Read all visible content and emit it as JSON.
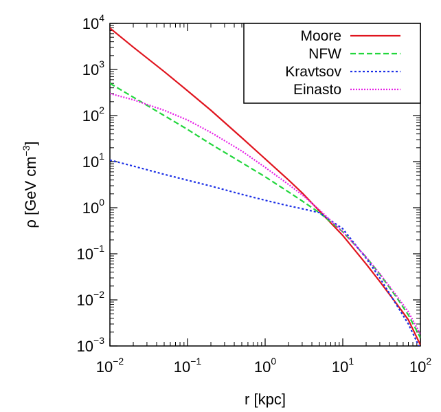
{
  "chart_data": {
    "type": "line",
    "title": "",
    "xlabel": "r [kpc]",
    "ylabel": {
      "prefix": "ρ [GeV cm",
      "exp": "−3",
      "suffix": "]"
    },
    "xscale": "log",
    "yscale": "log",
    "xlim": [
      0.01,
      100
    ],
    "ylim": [
      0.001,
      10000
    ],
    "grid": false,
    "legend_position": "top-right",
    "x_ticks": [
      {
        "base": "10",
        "exp": "−2"
      },
      {
        "base": "10",
        "exp": "−1"
      },
      {
        "base": "10",
        "exp": "0"
      },
      {
        "base": "10",
        "exp": "1"
      },
      {
        "base": "10",
        "exp": "2"
      }
    ],
    "y_ticks": [
      {
        "base": "10",
        "exp": "−3"
      },
      {
        "base": "10",
        "exp": "−2"
      },
      {
        "base": "10",
        "exp": "−1"
      },
      {
        "base": "10",
        "exp": "0"
      },
      {
        "base": "10",
        "exp": "1"
      },
      {
        "base": "10",
        "exp": "2"
      },
      {
        "base": "10",
        "exp": "3"
      },
      {
        "base": "10",
        "exp": "4"
      }
    ],
    "series": [
      {
        "name": "Moore",
        "color": "#e0141e",
        "dash": "solid",
        "x": [
          0.01,
          0.02,
          0.05,
          0.1,
          0.2,
          0.5,
          1,
          2,
          3,
          5,
          10,
          20,
          30,
          50,
          70,
          100
        ],
        "y": [
          7900,
          3050,
          900,
          345,
          130,
          33,
          11.5,
          4.0,
          2.1,
          0.85,
          0.25,
          0.06,
          0.025,
          0.008,
          0.0037,
          0.00105
        ]
      },
      {
        "name": "NFW",
        "color": "#22d63c",
        "dash": "dashed",
        "x": [
          0.01,
          0.02,
          0.05,
          0.1,
          0.2,
          0.5,
          1,
          2,
          3,
          5,
          10,
          20,
          30,
          50,
          70,
          100
        ],
        "y": [
          500,
          250,
          100,
          50,
          24,
          9.5,
          4.7,
          2.2,
          1.4,
          0.78,
          0.3,
          0.085,
          0.036,
          0.011,
          0.0047,
          0.0015
        ]
      },
      {
        "name": "Kravtsov",
        "color": "#1a2ee6",
        "dash": "dotted",
        "x": [
          0.01,
          0.02,
          0.05,
          0.1,
          0.2,
          0.5,
          1,
          2,
          3,
          5,
          10,
          20,
          30,
          50,
          70,
          100
        ],
        "y": [
          10.8,
          8.0,
          5.3,
          3.95,
          2.95,
          1.95,
          1.45,
          1.1,
          0.95,
          0.78,
          0.35,
          0.08,
          0.03,
          0.0075,
          0.003,
          0.00085
        ]
      },
      {
        "name": "Einasto",
        "color": "#e61ee6",
        "dash": "dashdot",
        "x": [
          0.01,
          0.02,
          0.05,
          0.1,
          0.2,
          0.5,
          1,
          2,
          3,
          5,
          10,
          20,
          30,
          50,
          70,
          100
        ],
        "y": [
          300,
          220,
          130,
          80,
          43,
          17,
          7.5,
          3.2,
          1.9,
          0.9,
          0.3,
          0.085,
          0.037,
          0.012,
          0.0055,
          0.0018
        ]
      }
    ]
  }
}
